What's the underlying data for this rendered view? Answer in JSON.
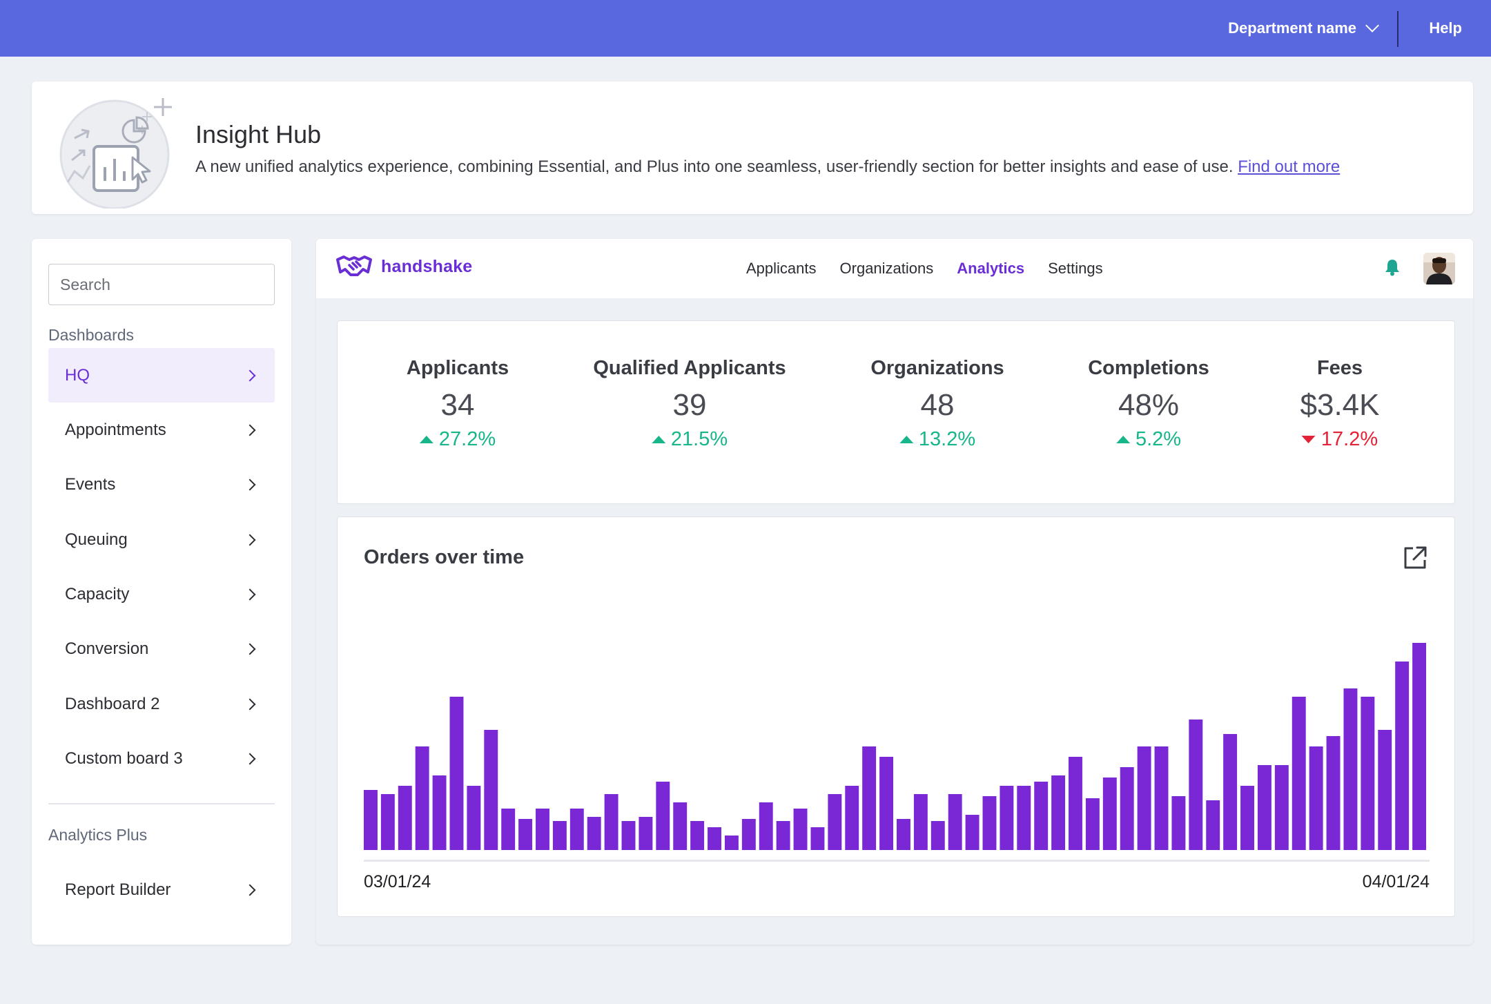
{
  "topbar": {
    "department_label": "Department name",
    "help_label": "Help",
    "bg_color": "#5a68e0"
  },
  "banner": {
    "title": "Insight Hub",
    "description": "A new unified analytics experience, combining Essential, and Plus into one seamless, user-friendly section for better insights and ease of use.",
    "link_label": "Find out more"
  },
  "sidebar": {
    "search_placeholder": "Search",
    "dashboards_label": "Dashboards",
    "items": [
      {
        "label": "HQ",
        "active": true
      },
      {
        "label": "Appointments"
      },
      {
        "label": "Events"
      },
      {
        "label": "Queuing"
      },
      {
        "label": "Capacity"
      },
      {
        "label": "Conversion"
      },
      {
        "label": "Dashboard 2"
      },
      {
        "label": "Custom board 3"
      }
    ],
    "analytics_plus_label": "Analytics Plus",
    "plus_items": [
      {
        "label": "Report Builder"
      }
    ]
  },
  "app": {
    "logo_text": "handshake",
    "nav": [
      {
        "label": "Applicants"
      },
      {
        "label": "Organizations"
      },
      {
        "label": "Analytics",
        "active": true
      },
      {
        "label": "Settings"
      }
    ],
    "accent_color": "#6a2fd4",
    "bell_color": "#1ea692"
  },
  "kpis": [
    {
      "label": "Applicants",
      "value": "34",
      "delta": "27.2%",
      "direction": "up"
    },
    {
      "label": "Qualified Applicants",
      "value": "39",
      "delta": "21.5%",
      "direction": "up"
    },
    {
      "label": "Organizations",
      "value": "48",
      "delta": "13.2%",
      "direction": "up"
    },
    {
      "label": "Completions",
      "value": "48%",
      "delta": "5.2%",
      "direction": "up"
    },
    {
      "label": "Fees",
      "value": "$3.4K",
      "delta": "17.2%",
      "direction": "down"
    }
  ],
  "kpi_colors": {
    "up": "#17b58a",
    "down": "#e22337"
  },
  "chart_data": {
    "type": "bar",
    "title": "Orders over time",
    "x_start_label": "03/01/24",
    "x_end_label": "04/01/24",
    "bar_color": "#7a28d6",
    "values": [
      29,
      27,
      31,
      50,
      36,
      74,
      31,
      58,
      20,
      15,
      20,
      14,
      20,
      16,
      27,
      14,
      16,
      33,
      23,
      14,
      11,
      7,
      15,
      23,
      14,
      20,
      11,
      27,
      31,
      50,
      45,
      15,
      27,
      14,
      27,
      17,
      26,
      31,
      31,
      33,
      36,
      45,
      25,
      35,
      40,
      50,
      50,
      26,
      63,
      24,
      56,
      31,
      41,
      41,
      74,
      50,
      55,
      78,
      74,
      58,
      91,
      100
    ],
    "ylim": [
      0,
      100
    ]
  }
}
